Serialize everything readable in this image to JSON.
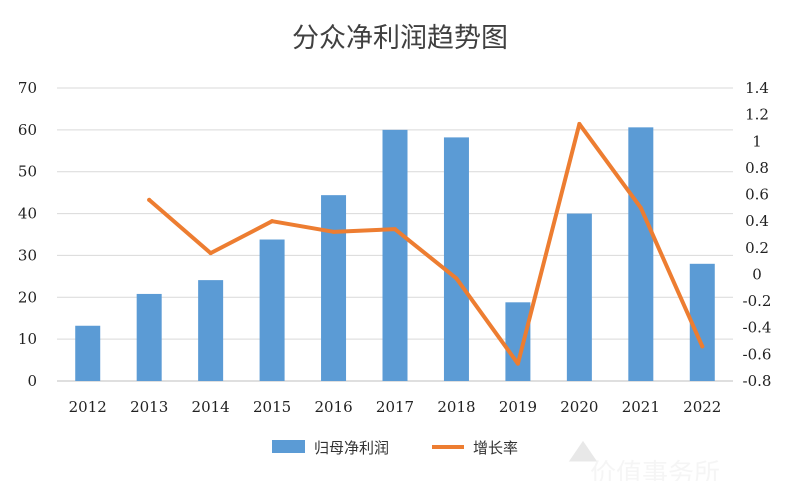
{
  "chart_data": {
    "type": "bar",
    "title": "分众净利润趋势图",
    "categories": [
      "2012",
      "2013",
      "2014",
      "2015",
      "2016",
      "2017",
      "2018",
      "2019",
      "2020",
      "2021",
      "2022"
    ],
    "series": [
      {
        "name": "归母净利润",
        "type": "bar",
        "axis": "left",
        "color": "#5B9BD5",
        "values": [
          13.2,
          20.8,
          24.1,
          33.8,
          44.4,
          60.0,
          58.2,
          18.8,
          40.0,
          60.6,
          28.0
        ]
      },
      {
        "name": "增长率",
        "type": "line",
        "axis": "right",
        "color": "#ED7D31",
        "values": [
          null,
          0.56,
          0.16,
          0.4,
          0.32,
          0.34,
          -0.03,
          -0.67,
          1.13,
          0.5,
          -0.54
        ]
      }
    ],
    "left_axis": {
      "ylim": [
        0,
        70
      ],
      "ticks": [
        "0",
        "10",
        "20",
        "30",
        "40",
        "50",
        "60",
        "70"
      ]
    },
    "right_axis": {
      "ylim": [
        -0.8,
        1.4
      ],
      "ticks": [
        "-0.8",
        "-0.6",
        "-0.4",
        "-0.2",
        "0",
        "0.2",
        "0.4",
        "0.6",
        "0.8",
        "1",
        "1.2",
        "1.4"
      ]
    },
    "grid": true,
    "legend": "bottom"
  },
  "watermark": {
    "text": "雪球：价值事务所",
    "big_text": "价值事务所"
  }
}
